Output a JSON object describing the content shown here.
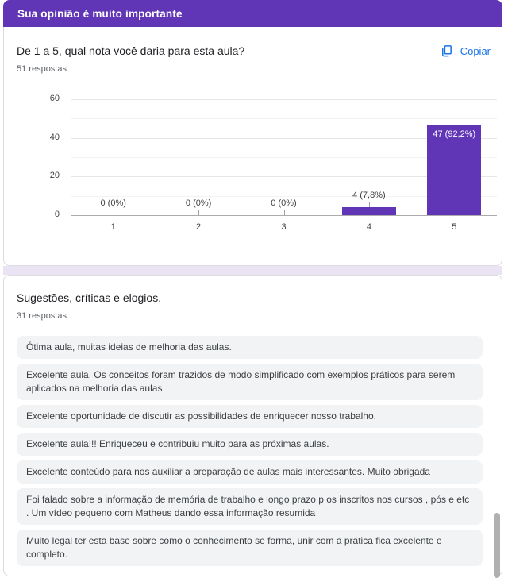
{
  "banner": {
    "title": "Sua opinião é muito importante",
    "bg_color": "#6036b6"
  },
  "question_card": {
    "title": "De 1 a 5, qual nota você daria para esta aula?",
    "responses_count": "51 respostas",
    "copy_label": "Copiar",
    "copy_color": "#1a73e8"
  },
  "chart_data": {
    "type": "bar",
    "categories": [
      "1",
      "2",
      "3",
      "4",
      "5"
    ],
    "values": [
      0,
      0,
      0,
      4,
      47
    ],
    "value_labels": [
      "0 (0%)",
      "0 (0%)",
      "0 (0%)",
      "4 (7,8%)",
      "47 (92,2%)"
    ],
    "title": "",
    "xlabel": "",
    "ylabel": "",
    "ylim": [
      0,
      60
    ],
    "yticks": [
      0,
      20,
      40,
      60
    ],
    "minor_yticks": [
      10,
      30,
      50
    ],
    "grid": "on",
    "legend": "none",
    "bar_color": "#6036b6"
  },
  "comments_card": {
    "title": "Sugestões, críticas e elogios.",
    "responses_count": "31 respostas",
    "items": [
      "Ótima aula, muitas ideias de melhoria das aulas.",
      "Excelente aula. Os conceitos foram trazidos de modo simplificado com exemplos práticos para serem aplicados na melhoria das aulas",
      "Excelente oportunidade de discutir as possibilidades de enriquecer nosso trabalho.",
      "Excelente aula!!! Enriqueceu e contribuiu muito para as próximas aulas.",
      "Excelente conteúdo para nos auxiliar a preparação de aulas mais interessantes. Muito obrigada",
      "Foi falado sobre a informação de memória de trabalho e longo prazo p os inscritos nos cursos , pós e etc . Um vídeo pequeno com Matheus dando essa informação resumida",
      "Muito legal ter esta base sobre como o conhecimento se forma, unir com a prática fica excelente e completo."
    ]
  }
}
